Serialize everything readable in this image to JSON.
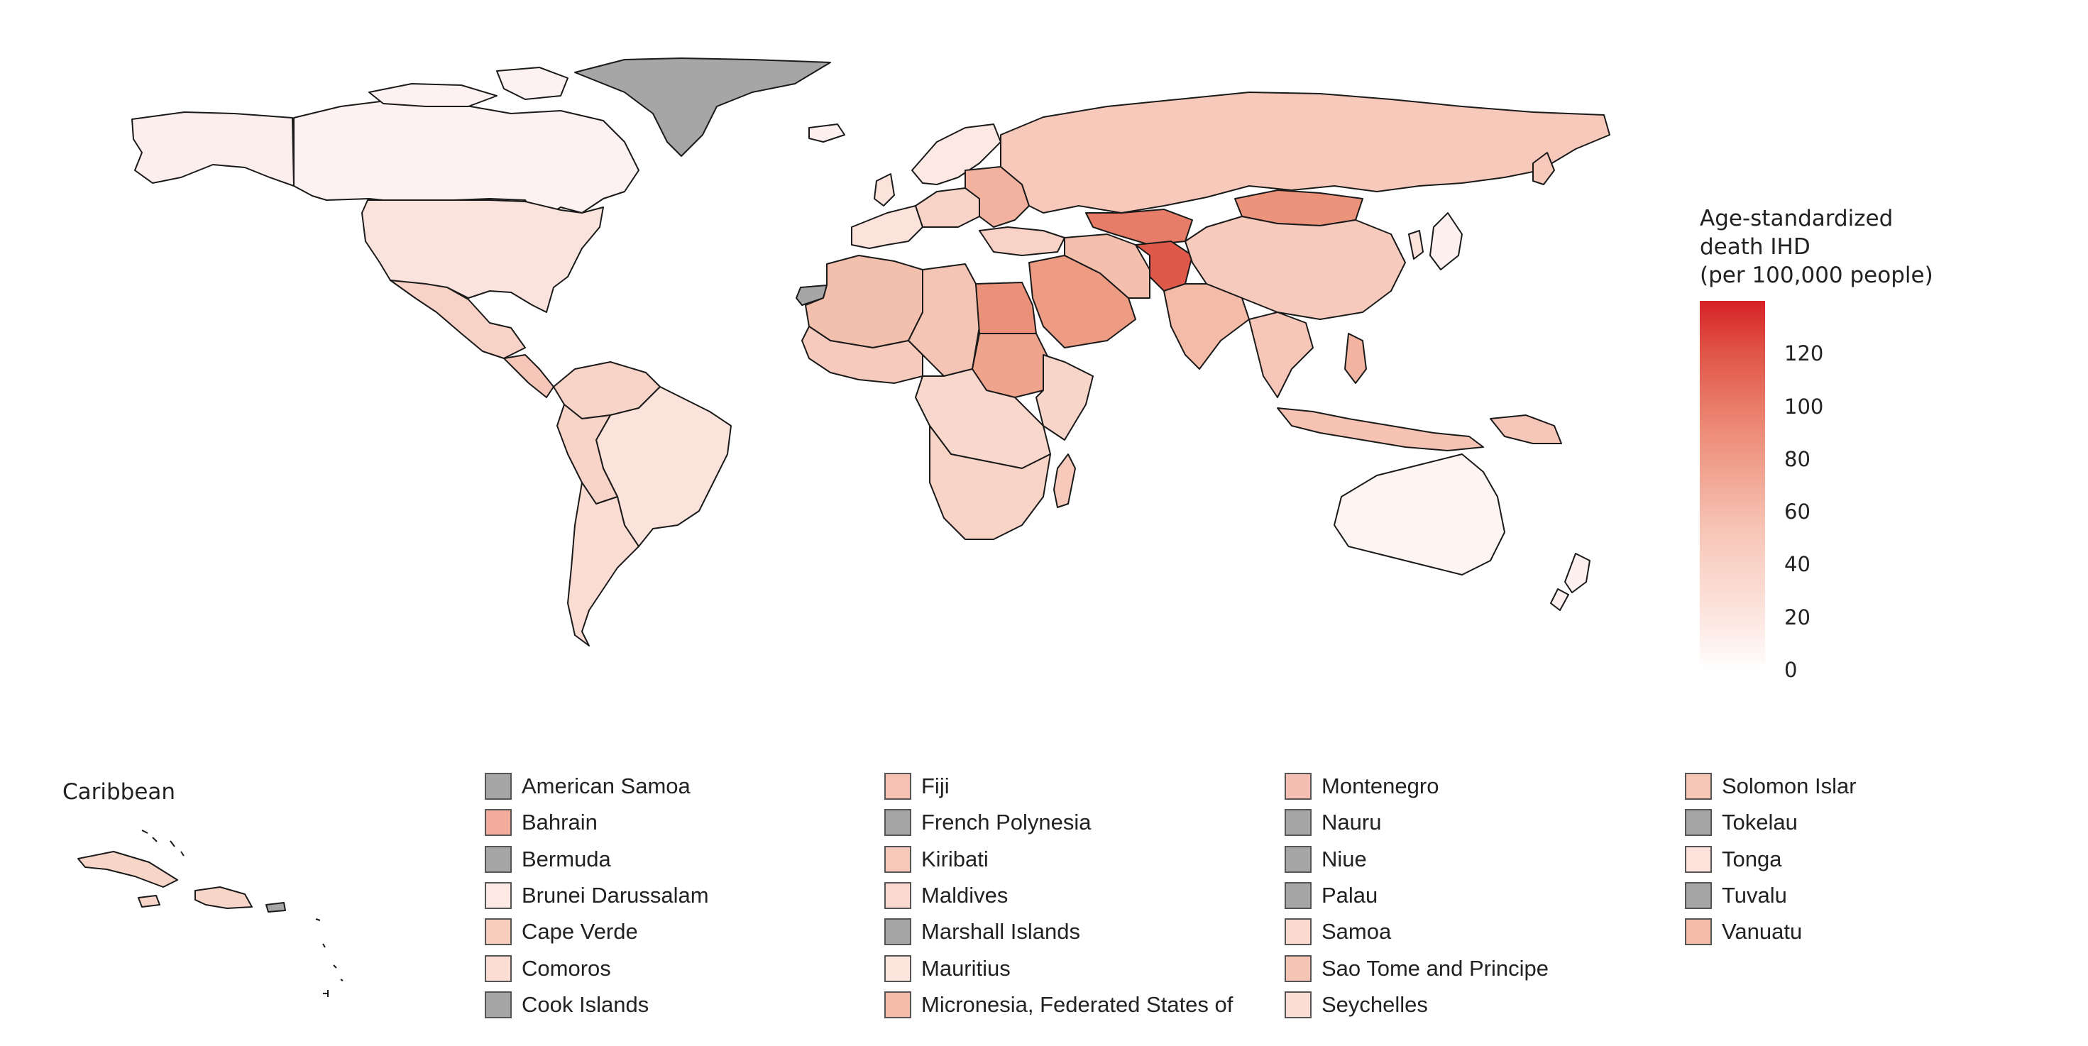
{
  "map": {
    "land_default_color": "#fde9e3",
    "no_data_color": "#a6a6a6",
    "border_color": "#1a1a1a"
  },
  "colorbar": {
    "title_lines": [
      "Age-standardized",
      "death IHD",
      "(per 100,000 people)"
    ],
    "ticks": [
      "0",
      "20",
      "40",
      "60",
      "80",
      "100",
      "120"
    ],
    "range": [
      0,
      140
    ],
    "colors": {
      "low": "#ffffff",
      "high": "#d62126"
    }
  },
  "caribbean": {
    "title": "Caribbean"
  },
  "small_states_legend": [
    {
      "name": "American Samoa",
      "color": "#a6a6a6"
    },
    {
      "name": "Bahrain",
      "color": "#f2ad9c"
    },
    {
      "name": "Bermuda",
      "color": "#a6a6a6"
    },
    {
      "name": "Brunei Darussalam",
      "color": "#fde9e4"
    },
    {
      "name": "Cape Verde",
      "color": "#f6cdbd"
    },
    {
      "name": "Comoros",
      "color": "#fbddd4"
    },
    {
      "name": "Cook Islands",
      "color": "#a6a6a6"
    },
    {
      "name": "Fiji",
      "color": "#f6c1b3"
    },
    {
      "name": "French Polynesia",
      "color": "#a6a6a6"
    },
    {
      "name": "Kiribati",
      "color": "#f6c8b9"
    },
    {
      "name": "Maldives",
      "color": "#fbd9d0"
    },
    {
      "name": "Marshall Islands",
      "color": "#a6a6a6"
    },
    {
      "name": "Mauritius",
      "color": "#fde6dd"
    },
    {
      "name": "Micronesia, Federated States of",
      "color": "#f4bca9"
    },
    {
      "name": "Montenegro",
      "color": "#f4bfb2"
    },
    {
      "name": "Nauru",
      "color": "#a6a6a6"
    },
    {
      "name": "Niue",
      "color": "#a6a6a6"
    },
    {
      "name": "Palau",
      "color": "#a6a6a6"
    },
    {
      "name": "Samoa",
      "color": "#fbd9cf"
    },
    {
      "name": "Sao Tome and Principe",
      "color": "#f6c4b5"
    },
    {
      "name": "Seychelles",
      "color": "#fbddd4"
    },
    {
      "name": "Solomon Islar",
      "color": "#f6c7b7"
    },
    {
      "name": "Tokelau",
      "color": "#a6a6a6"
    },
    {
      "name": "Tonga",
      "color": "#fde3dc"
    },
    {
      "name": "Tuvalu",
      "color": "#a6a6a6"
    },
    {
      "name": "Vanuatu",
      "color": "#f4bba8"
    }
  ]
}
